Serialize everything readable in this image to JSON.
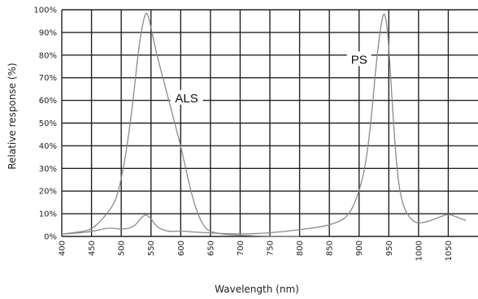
{
  "chart_data": {
    "type": "line",
    "xlabel": "Wavelength (nm)",
    "ylabel": "Relative response (%)",
    "xlim": [
      400,
      1100
    ],
    "ylim": [
      0,
      100
    ],
    "x_ticks": [
      "400",
      "450",
      "500",
      "550",
      "600",
      "650",
      "700",
      "750",
      "800",
      "850",
      "900",
      "950",
      "1000",
      "1050"
    ],
    "y_ticks": [
      "0%",
      "10%",
      "20%",
      "30%",
      "40%",
      "50%",
      "60%",
      "70%",
      "80%",
      "90%",
      "100%"
    ],
    "grid": true,
    "series": [
      {
        "name": "ALS",
        "color": "#8a8a8a",
        "x": [
          400,
          430,
          450,
          470,
          490,
          500,
          510,
          520,
          530,
          540,
          545,
          550,
          560,
          570,
          580,
          590,
          600,
          610,
          620,
          630,
          640,
          650,
          670,
          700,
          750,
          800
        ],
        "y": [
          1,
          2,
          3,
          8,
          15,
          25,
          40,
          60,
          85,
          99,
          98,
          92,
          80,
          70,
          60,
          50,
          40,
          28,
          17,
          9,
          4,
          2,
          1,
          0.5,
          0,
          0
        ]
      },
      {
        "name": "PS",
        "color": "#8a8a8a",
        "x": [
          400,
          450,
          480,
          500,
          520,
          530,
          540,
          550,
          560,
          580,
          600,
          620,
          650,
          700,
          750,
          800,
          830,
          850,
          870,
          880,
          890,
          900,
          910,
          920,
          930,
          940,
          945,
          950,
          960,
          970,
          990,
          1010,
          1030,
          1050,
          1060,
          1080
        ],
        "y": [
          1,
          2,
          4,
          3,
          4,
          7,
          10,
          8,
          4,
          2,
          2.5,
          2,
          1.5,
          1,
          1.5,
          3,
          4,
          5,
          7,
          9,
          13,
          20,
          30,
          50,
          80,
          99,
          97,
          85,
          40,
          15,
          6,
          6,
          8,
          10,
          9,
          7
        ]
      }
    ],
    "annotations": [
      {
        "text": "ALS",
        "x": 610,
        "y": 61
      },
      {
        "text": "PS",
        "x": 900,
        "y": 78
      }
    ]
  }
}
